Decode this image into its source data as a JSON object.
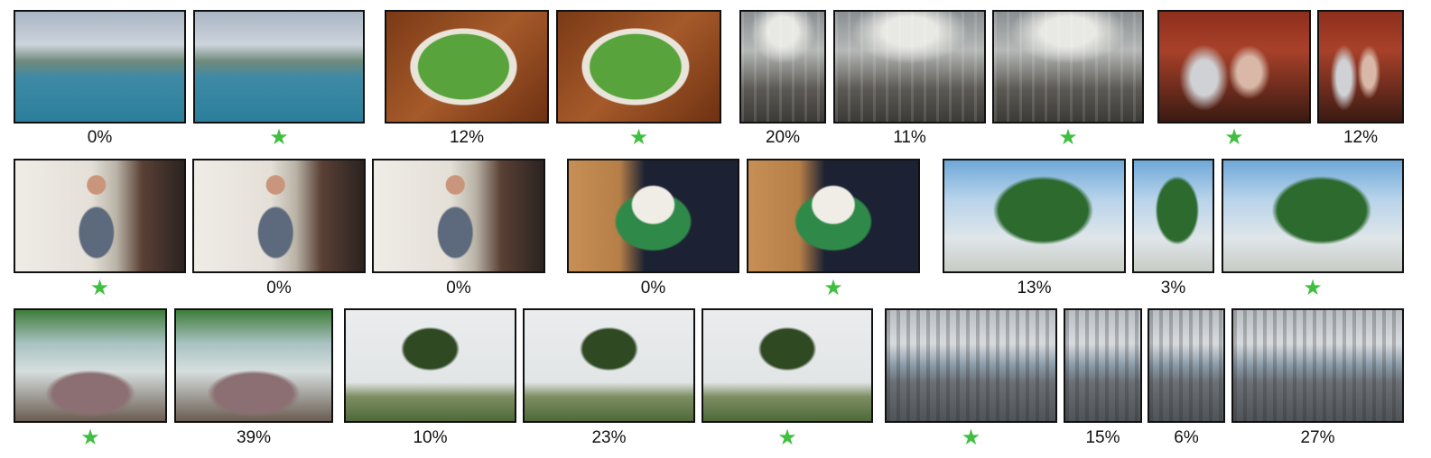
{
  "thumbnails": [
    {
      "id": "r1-1",
      "scene": "harbor"
    },
    {
      "id": "r1-2",
      "scene": "harbor"
    },
    {
      "id": "r1-3",
      "scene": "soup"
    },
    {
      "id": "r1-4",
      "scene": "soup"
    },
    {
      "id": "r1-5",
      "scene": "station"
    },
    {
      "id": "r1-6",
      "scene": "station"
    },
    {
      "id": "r1-7",
      "scene": "station"
    },
    {
      "id": "r1-8",
      "scene": "party"
    },
    {
      "id": "r1-9",
      "scene": "party"
    },
    {
      "id": "r2-1",
      "scene": "speaker"
    },
    {
      "id": "r2-2",
      "scene": "speaker"
    },
    {
      "id": "r2-3",
      "scene": "speaker"
    },
    {
      "id": "r2-4",
      "scene": "poodle"
    },
    {
      "id": "r2-5",
      "scene": "poodle"
    },
    {
      "id": "r2-6",
      "scene": "trees"
    },
    {
      "id": "r2-7",
      "scene": "trees"
    },
    {
      "id": "r2-8",
      "scene": "trees"
    },
    {
      "id": "r3-1",
      "scene": "falls"
    },
    {
      "id": "r3-2",
      "scene": "falls"
    },
    {
      "id": "r3-3",
      "scene": "bonsai"
    },
    {
      "id": "r3-4",
      "scene": "bonsai"
    },
    {
      "id": "r3-5",
      "scene": "bonsai"
    },
    {
      "id": "r3-6",
      "scene": "city"
    },
    {
      "id": "r3-7",
      "scene": "city"
    },
    {
      "id": "r3-8",
      "scene": "city"
    },
    {
      "id": "r3-9",
      "scene": "city"
    }
  ],
  "labels": {
    "r1_1": "0%",
    "r1_2": "★",
    "r1_3": "12%",
    "r1_4": "★",
    "r1_5": "20%",
    "r1_6": "11%",
    "r1_7": "★",
    "r1_8": "★",
    "r1_9": "12%",
    "r2_1": "★",
    "r2_2": "0%",
    "r2_3": "0%",
    "r2_4": "0%",
    "r2_5": "★",
    "r2_6": "13%",
    "r2_7": "3%",
    "r2_8": "★",
    "r3_1": "★",
    "r3_2": "39%",
    "r3_3": "10%",
    "r3_4": "23%",
    "r3_5": "★",
    "r3_6": "★",
    "r3_7": "15%",
    "r3_8": "6%",
    "r3_9": "27%"
  },
  "colors": {
    "star": "#3fbf3f",
    "border": "#111111"
  }
}
